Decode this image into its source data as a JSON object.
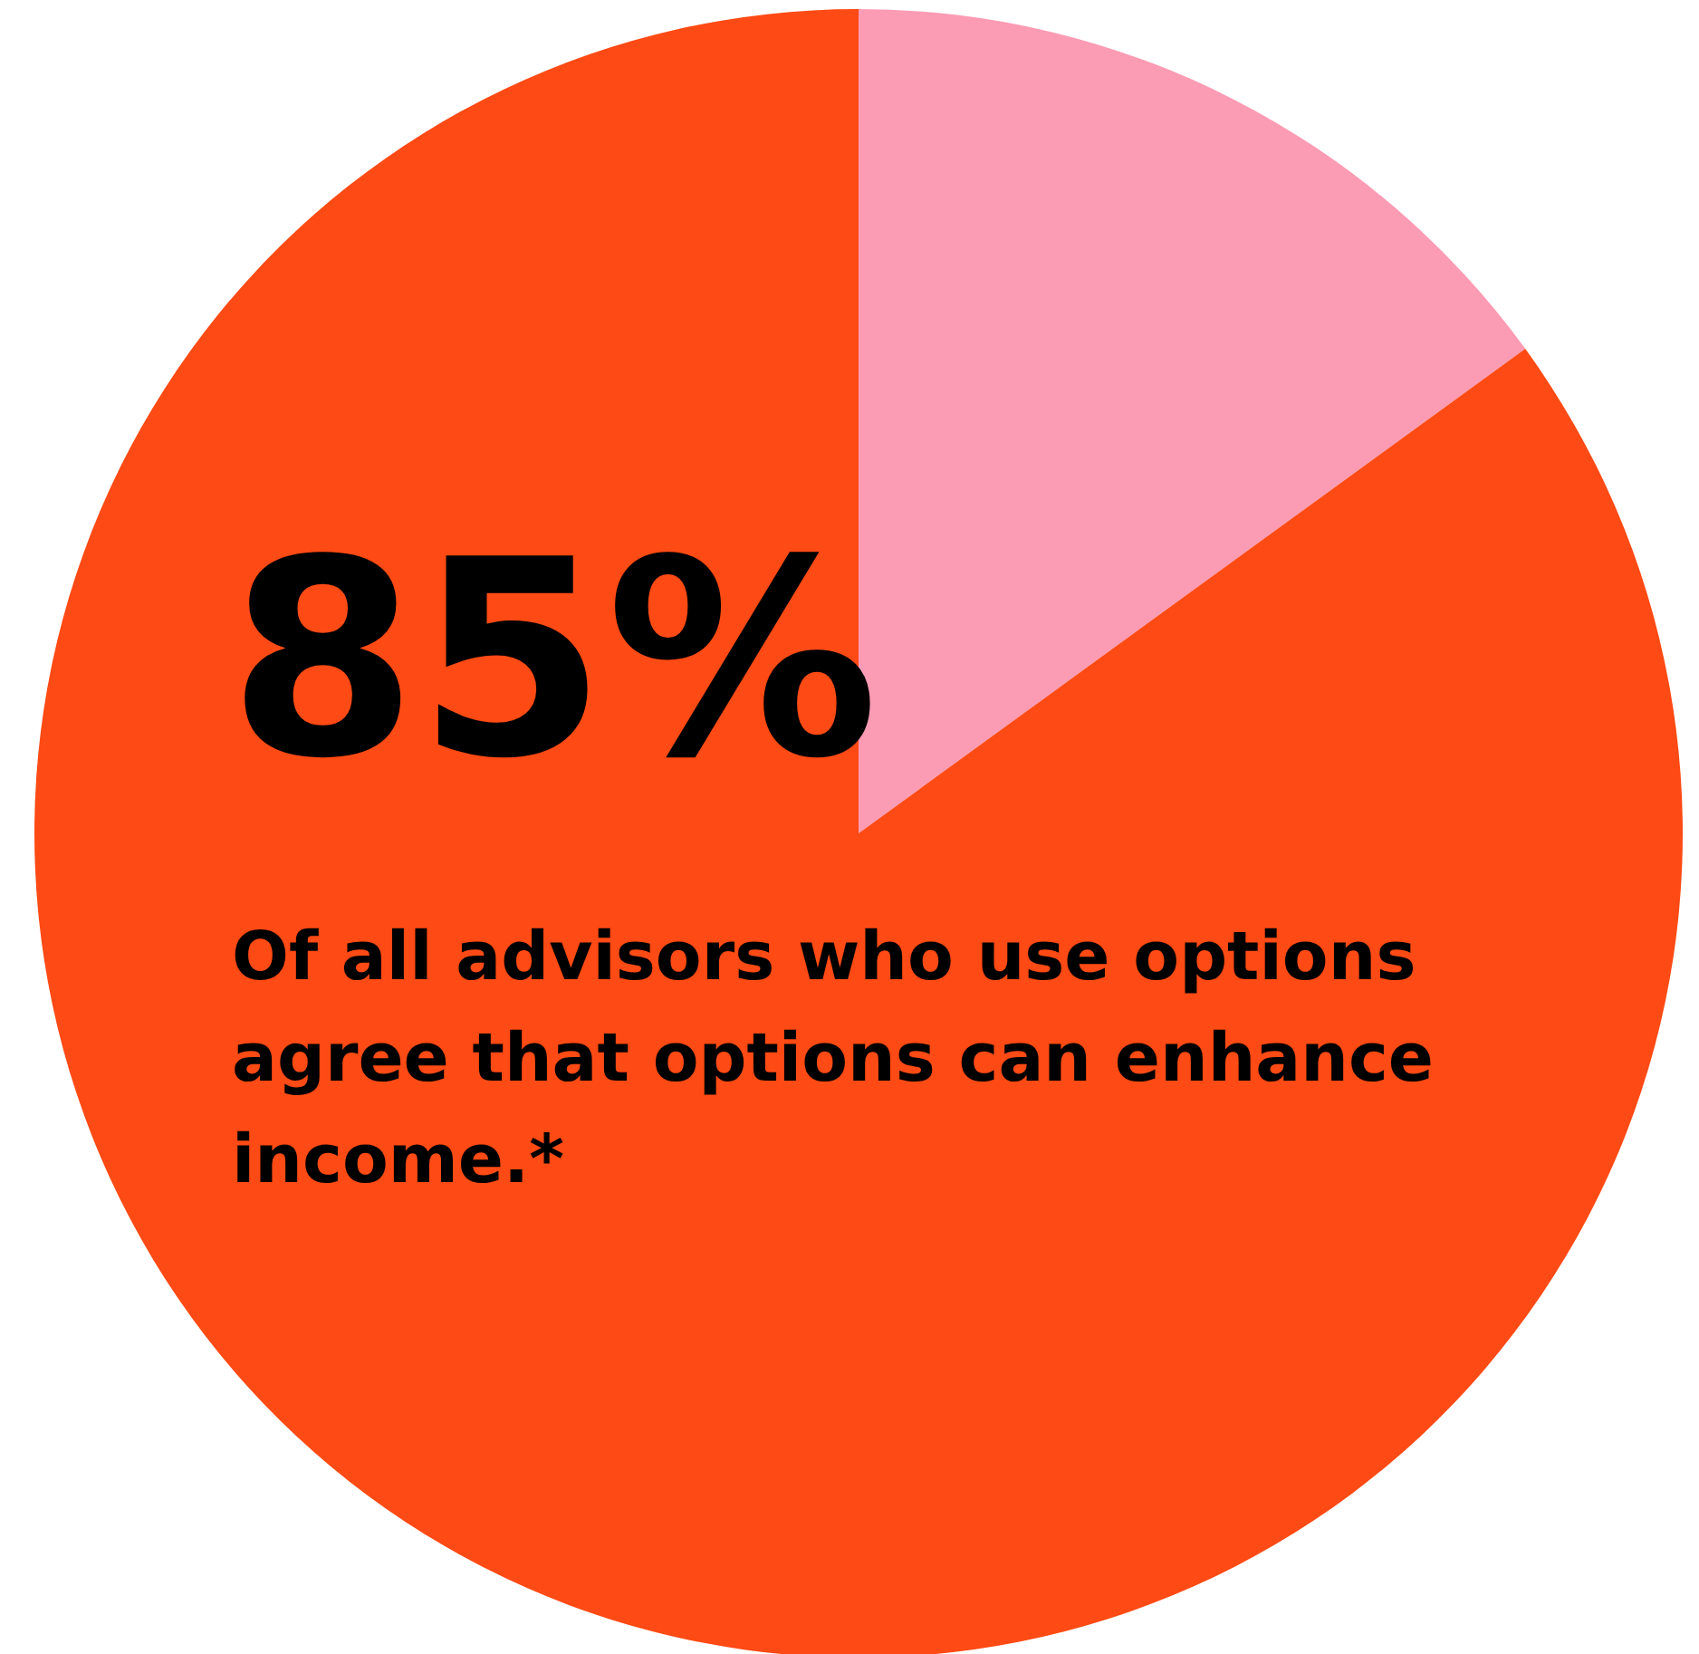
{
  "chart_data": {
    "type": "pie",
    "categories": [
      null,
      null
    ],
    "values": [
      15,
      85
    ],
    "colors": [
      "#fc9bb4",
      "#fe4a14"
    ],
    "value_labels": [
      null,
      "85%"
    ],
    "annotations": [
      "Of all advisors who use options agree that options can enhance income.*"
    ]
  }
}
